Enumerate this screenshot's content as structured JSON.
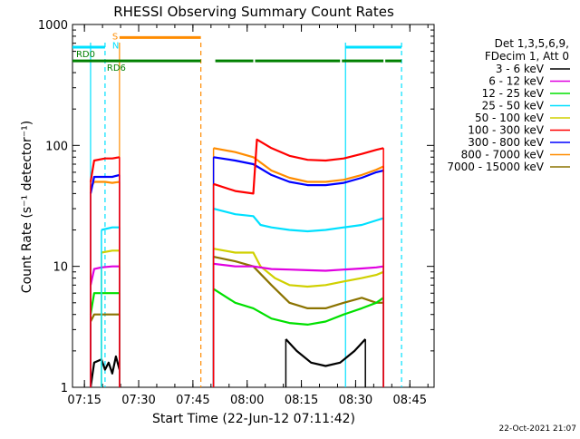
{
  "chart_data": {
    "type": "line",
    "title": "RHESSI Observing Summary Count Rates",
    "xlabel": "Start Time (22-Jun-12 07:11:42)",
    "ylabel": "Count Rate (s⁻¹ detector⁻¹)",
    "yscale": "log",
    "ylim": [
      1,
      1000
    ],
    "xlim_minutes": [
      0,
      100
    ],
    "x_tick_labels": [
      "07:15",
      "07:30",
      "07:45",
      "08:00",
      "08:15",
      "08:30",
      "08:45"
    ],
    "x_tick_minutes": [
      3.3,
      18.3,
      33.3,
      48.3,
      63.3,
      78.3,
      93.3
    ],
    "y_tick_labels": [
      "1",
      "10",
      "100",
      "1000"
    ],
    "y_tick_values": [
      1,
      10,
      100,
      1000
    ],
    "legend_header": [
      "Det 1,3,5,6,9,",
      "FDecim 1, Att 0"
    ],
    "series": [
      {
        "name": "3 - 6 keV",
        "color": "#000000",
        "segments": [
          [
            [
              5,
              1
            ],
            [
              6,
              1.6
            ],
            [
              8,
              1.7
            ],
            [
              9,
              1.4
            ],
            [
              10,
              1.6
            ],
            [
              11,
              1.3
            ],
            [
              12,
              1.8
            ],
            [
              13,
              1.4
            ]
          ],
          [
            [
              59,
              2.5
            ],
            [
              62,
              2.0
            ],
            [
              66,
              1.6
            ],
            [
              70,
              1.5
            ],
            [
              74,
              1.6
            ],
            [
              78,
              2.0
            ],
            [
              81,
              2.5
            ]
          ]
        ]
      },
      {
        "name": "6 - 12 keV",
        "color": "#e000e0",
        "segments": [
          [
            [
              5,
              7
            ],
            [
              6,
              9.5
            ],
            [
              8,
              9.8
            ],
            [
              11,
              10
            ],
            [
              13,
              10
            ]
          ],
          [
            [
              39,
              10.5
            ],
            [
              45,
              10
            ],
            [
              50,
              10
            ],
            [
              55,
              9.5
            ],
            [
              60,
              9.4
            ],
            [
              65,
              9.3
            ],
            [
              70,
              9.2
            ],
            [
              75,
              9.4
            ],
            [
              80,
              9.6
            ],
            [
              84,
              9.8
            ],
            [
              86,
              10
            ]
          ]
        ]
      },
      {
        "name": "12 - 25 keV",
        "color": "#00e000",
        "segments": [
          [
            [
              5,
              4
            ],
            [
              6,
              6
            ],
            [
              9,
              6
            ],
            [
              13,
              6
            ]
          ],
          [
            [
              39,
              6.5
            ],
            [
              45,
              5
            ],
            [
              50,
              4.5
            ],
            [
              55,
              3.7
            ],
            [
              60,
              3.4
            ],
            [
              65,
              3.3
            ],
            [
              70,
              3.5
            ],
            [
              75,
              4
            ],
            [
              80,
              4.5
            ],
            [
              84,
              5
            ],
            [
              86,
              5.5
            ]
          ]
        ]
      },
      {
        "name": "25 - 50 keV",
        "color": "#00e0ff",
        "segments": [
          [
            [
              8,
              20
            ],
            [
              11,
              21
            ],
            [
              13,
              21
            ]
          ],
          [
            [
              39,
              30
            ],
            [
              45,
              27
            ],
            [
              50,
              26
            ],
            [
              52,
              22
            ],
            [
              55,
              21
            ],
            [
              60,
              20
            ],
            [
              65,
              19.5
            ],
            [
              70,
              20
            ],
            [
              75,
              21
            ],
            [
              80,
              22
            ],
            [
              84,
              24
            ],
            [
              86,
              25
            ]
          ]
        ]
      },
      {
        "name": "50 - 100 keV",
        "color": "#d0d000",
        "segments": [
          [
            [
              8,
              13
            ],
            [
              11,
              13.5
            ],
            [
              13,
              13.5
            ]
          ],
          [
            [
              39,
              14
            ],
            [
              45,
              13
            ],
            [
              50,
              13
            ],
            [
              52,
              10
            ],
            [
              56,
              8
            ],
            [
              60,
              7
            ],
            [
              65,
              6.8
            ],
            [
              70,
              7
            ],
            [
              75,
              7.5
            ],
            [
              80,
              8
            ],
            [
              84,
              8.5
            ],
            [
              86,
              9
            ]
          ]
        ]
      },
      {
        "name": "100 - 300 keV",
        "color": "#ff0000",
        "segments": [
          [
            [
              5,
              50
            ],
            [
              6,
              75
            ],
            [
              9,
              78
            ],
            [
              11,
              78
            ],
            [
              13,
              80
            ]
          ],
          [
            [
              39,
              48
            ],
            [
              45,
              42
            ],
            [
              50,
              40
            ],
            [
              51,
              112
            ],
            [
              55,
              95
            ],
            [
              60,
              82
            ],
            [
              65,
              76
            ],
            [
              70,
              75
            ],
            [
              75,
              78
            ],
            [
              80,
              85
            ],
            [
              84,
              92
            ],
            [
              86,
              95
            ]
          ]
        ]
      },
      {
        "name": "300 - 800 keV",
        "color": "#0000ff",
        "segments": [
          [
            [
              5,
              40
            ],
            [
              6,
              55
            ],
            [
              9,
              55
            ],
            [
              11,
              55
            ],
            [
              13,
              57
            ]
          ],
          [
            [
              39,
              80
            ],
            [
              45,
              75
            ],
            [
              50,
              70
            ],
            [
              55,
              57
            ],
            [
              60,
              50
            ],
            [
              65,
              47
            ],
            [
              70,
              47
            ],
            [
              75,
              49
            ],
            [
              80,
              54
            ],
            [
              84,
              60
            ],
            [
              86,
              62
            ]
          ]
        ]
      },
      {
        "name": "800 - 7000 keV",
        "color": "#ff8c00",
        "segments": [
          [
            [
              5,
              45
            ],
            [
              6,
              50
            ],
            [
              9,
              50
            ],
            [
              11,
              49
            ],
            [
              13,
              50
            ]
          ],
          [
            [
              39,
              95
            ],
            [
              45,
              88
            ],
            [
              50,
              80
            ],
            [
              55,
              62
            ],
            [
              60,
              54
            ],
            [
              65,
              50
            ],
            [
              70,
              50
            ],
            [
              75,
              52
            ],
            [
              80,
              57
            ],
            [
              84,
              63
            ],
            [
              86,
              67
            ]
          ]
        ]
      },
      {
        "name": "7000 - 15000 keV",
        "color": "#8b7300",
        "segments": [
          [
            [
              5,
              3.5
            ],
            [
              6,
              4
            ],
            [
              9,
              4
            ],
            [
              13,
              4
            ]
          ],
          [
            [
              39,
              12
            ],
            [
              45,
              11
            ],
            [
              50,
              10
            ],
            [
              55,
              7
            ],
            [
              60,
              5
            ],
            [
              65,
              4.5
            ],
            [
              70,
              4.5
            ],
            [
              75,
              5
            ],
            [
              80,
              5.5
            ],
            [
              84,
              5
            ],
            [
              86,
              5
            ]
          ]
        ]
      }
    ],
    "annotations": {
      "rd0": {
        "label": "RD0",
        "color": "#008000",
        "y": 500,
        "segments": [
          [
            0,
            13
          ],
          [
            13,
            35.5
          ],
          [
            39.5,
            50
          ],
          [
            50.5,
            74
          ],
          [
            74.5,
            86
          ],
          [
            86.5,
            91
          ]
        ]
      },
      "n_s": {
        "label_n": "N",
        "label_s": "S",
        "color_n": "#00e0ff",
        "color_s": "#ff8c00"
      },
      "cyan_top": {
        "color": "#00e0ff",
        "y": 650,
        "segments": [
          [
            0,
            9
          ],
          [
            75.5,
            91
          ]
        ]
      },
      "orange_top": {
        "color": "#ff8c00",
        "y": 780,
        "segments": [
          [
            13,
            35.5
          ]
        ]
      },
      "vlines": [
        {
          "x": 5,
          "color": "#00e0ff",
          "style": "solid"
        },
        {
          "x": 9,
          "color": "#00e0ff",
          "style": "dashed"
        },
        {
          "x": 13,
          "color": "#ff8c00",
          "style": "solid"
        },
        {
          "x": 35.5,
          "color": "#ff8c00",
          "style": "dashed"
        },
        {
          "x": 75.5,
          "color": "#00e0ff",
          "style": "solid"
        },
        {
          "x": 91,
          "color": "#00e0ff",
          "style": "dashed"
        }
      ],
      "rd6_label": "RD6"
    }
  },
  "footer_date": "22-Oct-2021 21:07"
}
